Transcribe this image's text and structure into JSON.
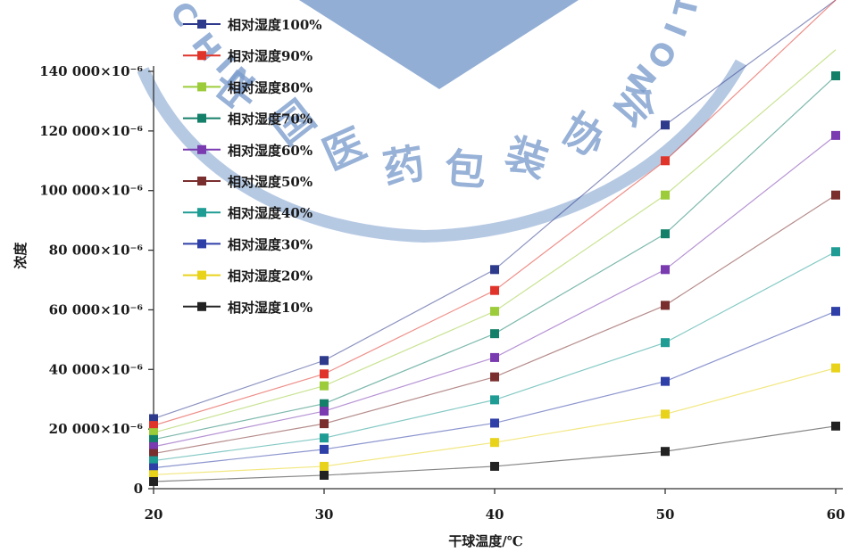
{
  "chart_data": {
    "type": "line",
    "xlabel": "干球温度/℃",
    "ylabel": "浓度",
    "x": [
      20,
      30,
      40,
      50,
      60
    ],
    "xlim": [
      20,
      60
    ],
    "ylim": [
      0,
      140000
    ],
    "y_ticks": [
      {
        "value": 0,
        "label": "0"
      },
      {
        "value": 20000,
        "label": "20 000×10⁻⁶"
      },
      {
        "value": 40000,
        "label": "40 000×10⁻⁶"
      },
      {
        "value": 60000,
        "label": "60 000×10⁻⁶"
      },
      {
        "value": 80000,
        "label": "80 000×10⁻⁶"
      },
      {
        "value": 100000,
        "label": "100 000×10⁻⁶"
      },
      {
        "value": 120000,
        "label": "120 000×10⁻⁶"
      },
      {
        "value": 140000,
        "label": "140 000×10⁻⁶"
      }
    ],
    "x_ticks": [
      "20",
      "30",
      "40",
      "50",
      "60"
    ],
    "grid": false,
    "legend_position": "top-left",
    "series": [
      {
        "name": "相对湿度100%",
        "color": "#2e3a8c",
        "values": [
          23500,
          43000,
          73500,
          122000,
          null
        ]
      },
      {
        "name": "相对湿度90%",
        "color": "#e0342a",
        "values": [
          21200,
          38500,
          66500,
          110000,
          null
        ]
      },
      {
        "name": "相对湿度80%",
        "color": "#9ccc3a",
        "values": [
          18800,
          34500,
          59500,
          98500,
          null
        ]
      },
      {
        "name": "相对湿度70%",
        "color": "#14806a",
        "values": [
          16500,
          28500,
          52000,
          85500,
          138500
        ]
      },
      {
        "name": "相对湿度60%",
        "color": "#7a3ab0",
        "values": [
          14100,
          26000,
          44000,
          73500,
          118500
        ]
      },
      {
        "name": "相对湿度50%",
        "color": "#7a2e2e",
        "values": [
          11800,
          21800,
          37500,
          61500,
          98500
        ]
      },
      {
        "name": "相对湿度40%",
        "color": "#1f9c94",
        "values": [
          9400,
          17000,
          29800,
          49000,
          79500
        ]
      },
      {
        "name": "相对湿度30%",
        "color": "#2f3fa8",
        "values": [
          7000,
          13200,
          22000,
          36000,
          59500
        ]
      },
      {
        "name": "相对湿度20%",
        "color": "#e8d31a",
        "values": [
          4700,
          7500,
          15500,
          25000,
          40500
        ]
      },
      {
        "name": "相对湿度10%",
        "color": "#222222",
        "values": [
          2400,
          4500,
          7500,
          12500,
          21000
        ]
      }
    ]
  },
  "watermark": {
    "text": "中国医药包装协会",
    "arc_left": "CHIN",
    "arc_right": "NOIT",
    "color": "#7a9ccc"
  }
}
